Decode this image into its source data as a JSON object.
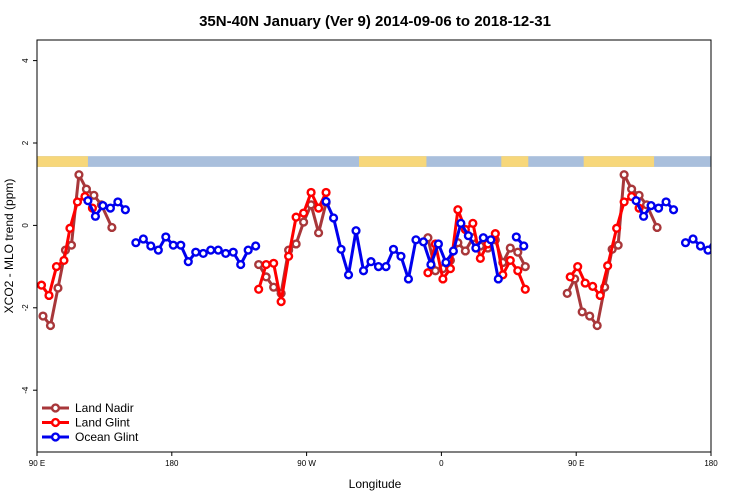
{
  "chart_data": {
    "type": "line",
    "title": "35N-40N January (Ver 9)   2014-09-06 to 2018-12-31",
    "xlabel": "Longitude",
    "ylabel": "XCO2 - MLO trend (ppm)",
    "xlim": [
      90,
      540
    ],
    "ylim": [
      -5.5,
      4.5
    ],
    "x_ticks": [
      {
        "value": 90,
        "label": "90 E"
      },
      {
        "value": 180,
        "label": "180"
      },
      {
        "value": 270,
        "label": "90 W"
      },
      {
        "value": 360,
        "label": "0"
      },
      {
        "value": 450,
        "label": "90 E"
      },
      {
        "value": 540,
        "label": "180"
      }
    ],
    "y_ticks": [
      {
        "value": -4,
        "label": "-4"
      },
      {
        "value": -2,
        "label": "-2"
      },
      {
        "value": 0,
        "label": "0"
      },
      {
        "value": 2,
        "label": "2"
      },
      {
        "value": 4,
        "label": "4"
      }
    ],
    "legend_position": "bottom-left",
    "land_strip": {
      "y_range": [
        1.42,
        1.68
      ],
      "ocean_color": "#a9bfdc",
      "land_color": "#f7d77a",
      "land_segments": [
        [
          90,
          124
        ],
        [
          305,
          350
        ],
        [
          400,
          418
        ],
        [
          455,
          502
        ]
      ]
    },
    "series": [
      {
        "name": "Land Nadir",
        "color": "#a8373a",
        "segments": [
          [
            [
              94,
              -2.2
            ],
            [
              99,
              -2.43
            ],
            [
              104,
              -1.52
            ],
            [
              109,
              -0.6
            ],
            [
              113,
              -0.48
            ],
            [
              118,
              1.23
            ],
            [
              123,
              0.88
            ],
            [
              128,
              0.73
            ],
            [
              133,
              0.5
            ],
            [
              140,
              -0.05
            ]
          ],
          [
            [
              238,
              -0.95
            ],
            [
              243,
              -1.25
            ],
            [
              248,
              -1.5
            ],
            [
              253,
              -1.65
            ],
            [
              258,
              -0.6
            ],
            [
              263,
              -0.45
            ],
            [
              268,
              0.08
            ],
            [
              273,
              0.5
            ],
            [
              278,
              -0.18
            ],
            [
              283,
              0.55
            ]
          ],
          [
            [
              351,
              -0.3
            ],
            [
              356,
              -1.1
            ],
            [
              361,
              -1.05
            ],
            [
              366,
              -0.85
            ],
            [
              371,
              -0.42
            ],
            [
              376,
              -0.62
            ],
            [
              381,
              -0.3
            ],
            [
              386,
              -0.5
            ],
            [
              391,
              -0.55
            ],
            [
              396,
              -0.35
            ],
            [
              401,
              -0.9
            ],
            [
              406,
              -0.55
            ],
            [
              411,
              -0.65
            ],
            [
              416,
              -1.0
            ]
          ],
          [
            [
              444,
              -1.65
            ],
            [
              449,
              -1.3
            ],
            [
              454,
              -2.1
            ],
            [
              459,
              -2.2
            ],
            [
              464,
              -2.43
            ],
            [
              469,
              -1.5
            ],
            [
              474,
              -0.58
            ],
            [
              478,
              -0.48
            ],
            [
              482,
              1.23
            ],
            [
              487,
              0.88
            ],
            [
              492,
              0.73
            ],
            [
              497,
              0.5
            ],
            [
              504,
              -0.05
            ]
          ]
        ]
      },
      {
        "name": "Land Glint",
        "color": "#ff0000",
        "segments": [
          [
            [
              93,
              -1.45
            ],
            [
              98,
              -1.7
            ],
            [
              103,
              -1.0
            ],
            [
              108,
              -0.85
            ],
            [
              112,
              -0.07
            ],
            [
              117,
              0.57
            ],
            [
              122,
              0.7
            ],
            [
              127,
              0.42
            ]
          ],
          [
            [
              238,
              -1.55
            ],
            [
              243,
              -0.95
            ],
            [
              248,
              -0.92
            ],
            [
              253,
              -1.85
            ],
            [
              258,
              -0.75
            ],
            [
              263,
              0.2
            ],
            [
              268,
              0.3
            ],
            [
              273,
              0.8
            ],
            [
              278,
              0.42
            ],
            [
              283,
              0.8
            ]
          ],
          [
            [
              351,
              -1.15
            ],
            [
              356,
              -0.45
            ],
            [
              361,
              -1.3
            ],
            [
              366,
              -1.05
            ],
            [
              371,
              0.38
            ],
            [
              376,
              -0.1
            ],
            [
              381,
              0.05
            ],
            [
              386,
              -0.8
            ],
            [
              391,
              -0.45
            ],
            [
              396,
              -0.2
            ],
            [
              401,
              -1.2
            ],
            [
              406,
              -0.85
            ],
            [
              411,
              -1.1
            ],
            [
              416,
              -1.55
            ]
          ],
          [
            [
              446,
              -1.25
            ],
            [
              451,
              -1.0
            ],
            [
              456,
              -1.4
            ],
            [
              461,
              -1.48
            ],
            [
              466,
              -1.7
            ],
            [
              471,
              -0.98
            ],
            [
              477,
              -0.07
            ],
            [
              482,
              0.57
            ],
            [
              487,
              0.7
            ],
            [
              492,
              0.42
            ]
          ]
        ]
      },
      {
        "name": "Ocean Glint",
        "color": "#0000ee",
        "segments": [
          [
            [
              124,
              0.6
            ],
            [
              129,
              0.22
            ],
            [
              134,
              0.48
            ],
            [
              139,
              0.42
            ],
            [
              144,
              0.57
            ],
            [
              149,
              0.38
            ]
          ],
          [
            [
              156,
              -0.42
            ],
            [
              161,
              -0.33
            ],
            [
              166,
              -0.5
            ],
            [
              171,
              -0.6
            ],
            [
              176,
              -0.28
            ],
            [
              181,
              -0.48
            ],
            [
              186,
              -0.48
            ],
            [
              191,
              -0.88
            ],
            [
              196,
              -0.65
            ],
            [
              201,
              -0.68
            ],
            [
              206,
              -0.6
            ],
            [
              211,
              -0.6
            ],
            [
              216,
              -0.68
            ],
            [
              221,
              -0.65
            ],
            [
              226,
              -0.95
            ],
            [
              231,
              -0.6
            ],
            [
              236,
              -0.5
            ]
          ],
          [
            [
              283,
              0.58
            ],
            [
              288,
              0.18
            ],
            [
              293,
              -0.58
            ],
            [
              298,
              -1.2
            ],
            [
              303,
              -0.13
            ],
            [
              308,
              -1.1
            ],
            [
              313,
              -0.88
            ],
            [
              318,
              -1.0
            ],
            [
              323,
              -1.0
            ],
            [
              328,
              -0.58
            ],
            [
              333,
              -0.75
            ],
            [
              338,
              -1.3
            ],
            [
              343,
              -0.35
            ],
            [
              348,
              -0.4
            ],
            [
              353,
              -0.95
            ],
            [
              358,
              -0.45
            ],
            [
              363,
              -0.9
            ],
            [
              368,
              -0.62
            ],
            [
              373,
              0.05
            ],
            [
              378,
              -0.25
            ],
            [
              383,
              -0.55
            ],
            [
              388,
              -0.3
            ],
            [
              393,
              -0.35
            ],
            [
              398,
              -1.3
            ]
          ],
          [
            [
              410,
              -0.28
            ],
            [
              415,
              -0.5
            ]
          ],
          [
            [
              490,
              0.6
            ],
            [
              495,
              0.22
            ],
            [
              500,
              0.48
            ],
            [
              505,
              0.42
            ],
            [
              510,
              0.57
            ],
            [
              515,
              0.38
            ]
          ],
          [
            [
              523,
              -0.42
            ],
            [
              528,
              -0.33
            ],
            [
              533,
              -0.5
            ],
            [
              538,
              -0.6
            ],
            [
              543,
              -0.3
            ]
          ]
        ]
      }
    ]
  }
}
